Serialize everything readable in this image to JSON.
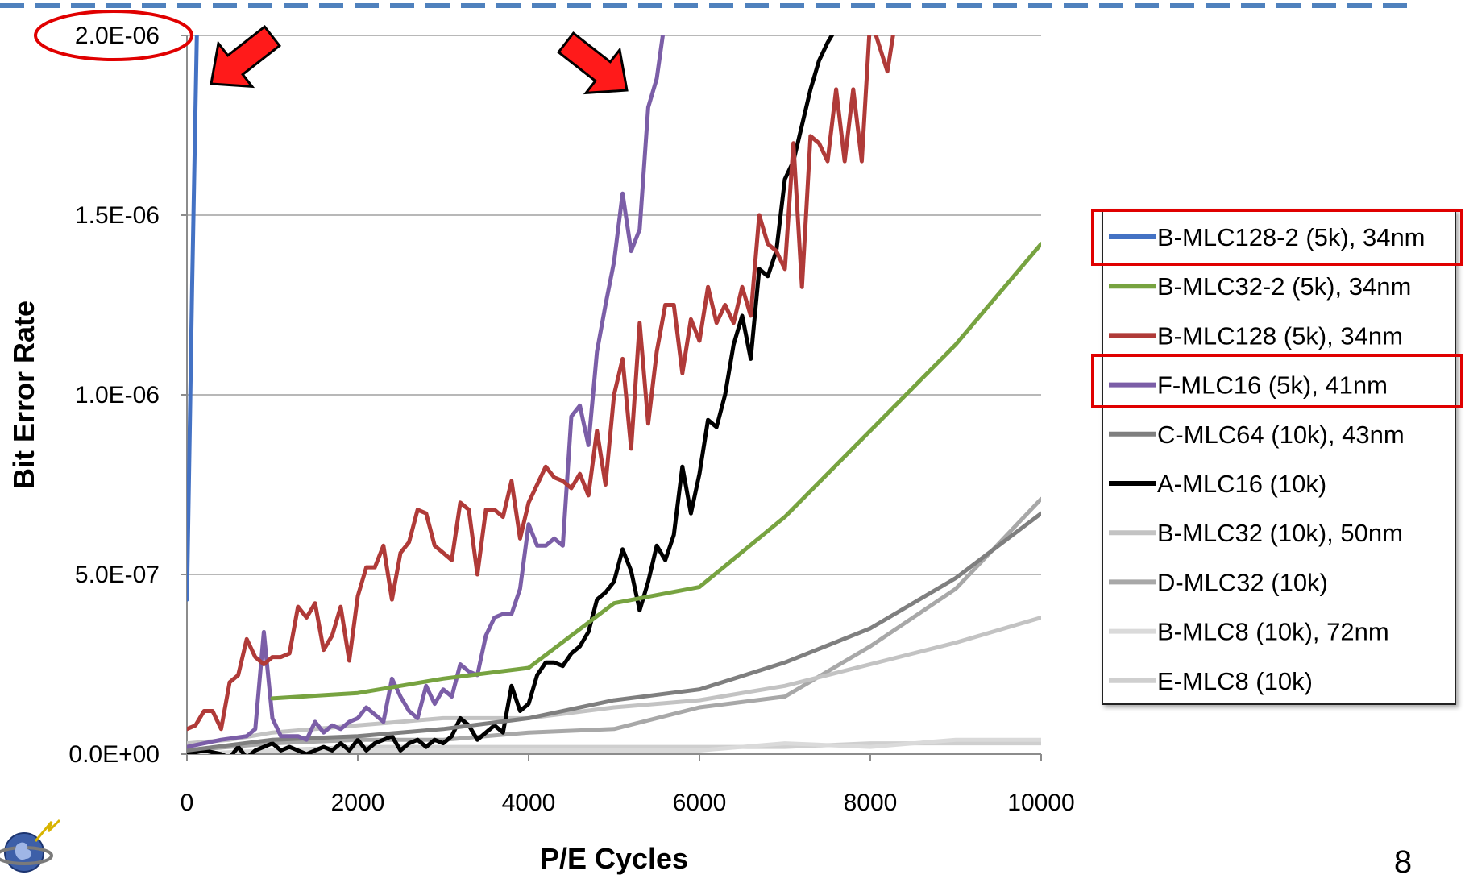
{
  "page_number": "8",
  "colors": {
    "header_dash": "#4f81bd",
    "highlight": "#e00000",
    "grid": "#a0a0a0",
    "axis": "#8c8c8c"
  },
  "chart_data": {
    "type": "line",
    "xlabel": "P/E Cycles",
    "ylabel": "Bit Error Rate",
    "xlim": [
      0,
      10000
    ],
    "ylim": [
      0,
      2e-06
    ],
    "x_ticks": [
      0,
      2000,
      4000,
      6000,
      8000,
      10000
    ],
    "x_tick_labels": [
      "0",
      "2000",
      "4000",
      "6000",
      "8000",
      "10000"
    ],
    "y_ticks": [
      0,
      5e-07,
      1e-06,
      1.5e-06,
      2e-06
    ],
    "y_tick_labels": [
      "0.0E+00",
      "5.0E-07",
      "1.0E-06",
      "1.5E-06",
      "2.0E-06"
    ],
    "grid": "horizontal",
    "legend_position": "right",
    "highlighted_tick": "2.0E-06",
    "highlighted_series": [
      "B-MLC128-2 (5k), 34nm",
      "F-MLC16 (5k), 41nm"
    ],
    "series": [
      {
        "name": "B-MLC128-2 (5k), 34nm",
        "color": "#4472c4",
        "points": [
          [
            0,
            4.3e-07
          ],
          [
            60,
            1.3e-06
          ],
          [
            120,
            2.05e-06
          ]
        ]
      },
      {
        "name": "B-MLC32-2 (5k), 34nm",
        "color": "#77a340",
        "points": [
          [
            1000,
            1.55e-07
          ],
          [
            2000,
            1.7e-07
          ],
          [
            3000,
            2.1e-07
          ],
          [
            4000,
            2.4e-07
          ],
          [
            5000,
            4.2e-07
          ],
          [
            6000,
            4.65e-07
          ],
          [
            7000,
            6.6e-07
          ],
          [
            8000,
            9e-07
          ],
          [
            9000,
            1.14e-06
          ],
          [
            10000,
            1.42e-06
          ]
        ]
      },
      {
        "name": "B-MLC128 (5k), 34nm",
        "color": "#b03a38",
        "points": [
          [
            0,
            7e-08
          ],
          [
            100,
            8e-08
          ],
          [
            200,
            1.2e-07
          ],
          [
            300,
            1.2e-07
          ],
          [
            400,
            7e-08
          ],
          [
            500,
            2e-07
          ],
          [
            600,
            2.2e-07
          ],
          [
            700,
            3.2e-07
          ],
          [
            800,
            2.7e-07
          ],
          [
            900,
            2.5e-07
          ],
          [
            1000,
            2.7e-07
          ],
          [
            1100,
            2.7e-07
          ],
          [
            1200,
            2.8e-07
          ],
          [
            1300,
            4.1e-07
          ],
          [
            1400,
            3.8e-07
          ],
          [
            1500,
            4.2e-07
          ],
          [
            1600,
            2.9e-07
          ],
          [
            1700,
            3.3e-07
          ],
          [
            1800,
            4.1e-07
          ],
          [
            1900,
            2.6e-07
          ],
          [
            2000,
            4.4e-07
          ],
          [
            2100,
            5.2e-07
          ],
          [
            2200,
            5.2e-07
          ],
          [
            2300,
            5.8e-07
          ],
          [
            2400,
            4.3e-07
          ],
          [
            2500,
            5.6e-07
          ],
          [
            2600,
            5.9e-07
          ],
          [
            2700,
            6.8e-07
          ],
          [
            2800,
            6.7e-07
          ],
          [
            2900,
            5.8e-07
          ],
          [
            3000,
            5.6e-07
          ],
          [
            3100,
            5.4e-07
          ],
          [
            3200,
            7e-07
          ],
          [
            3300,
            6.8e-07
          ],
          [
            3400,
            5e-07
          ],
          [
            3500,
            6.8e-07
          ],
          [
            3600,
            6.8e-07
          ],
          [
            3700,
            6.6e-07
          ],
          [
            3800,
            7.6e-07
          ],
          [
            3900,
            6e-07
          ],
          [
            4000,
            7e-07
          ],
          [
            4100,
            7.5e-07
          ],
          [
            4200,
            8e-07
          ],
          [
            4300,
            7.7e-07
          ],
          [
            4400,
            7.6e-07
          ],
          [
            4500,
            7.4e-07
          ],
          [
            4600,
            7.8e-07
          ],
          [
            4700,
            7.2e-07
          ],
          [
            4800,
            9e-07
          ],
          [
            4900,
            7.5e-07
          ],
          [
            5000,
            1e-06
          ],
          [
            5100,
            1.1e-06
          ],
          [
            5200,
            8.5e-07
          ],
          [
            5300,
            1.2e-06
          ],
          [
            5400,
            9.2e-07
          ],
          [
            5500,
            1.12e-06
          ],
          [
            5600,
            1.25e-06
          ],
          [
            5700,
            1.25e-06
          ],
          [
            5800,
            1.06e-06
          ],
          [
            5900,
            1.21e-06
          ],
          [
            6000,
            1.15e-06
          ],
          [
            6100,
            1.3e-06
          ],
          [
            6200,
            1.2e-06
          ],
          [
            6300,
            1.25e-06
          ],
          [
            6400,
            1.2e-06
          ],
          [
            6500,
            1.3e-06
          ],
          [
            6600,
            1.22e-06
          ],
          [
            6700,
            1.5e-06
          ],
          [
            6800,
            1.42e-06
          ],
          [
            6900,
            1.4e-06
          ],
          [
            7000,
            1.35e-06
          ],
          [
            7100,
            1.7e-06
          ],
          [
            7200,
            1.3e-06
          ],
          [
            7300,
            1.72e-06
          ],
          [
            7400,
            1.7e-06
          ],
          [
            7500,
            1.65e-06
          ],
          [
            7600,
            1.85e-06
          ],
          [
            7700,
            1.65e-06
          ],
          [
            7800,
            1.85e-06
          ],
          [
            7900,
            1.65e-06
          ],
          [
            8000,
            2.05e-06
          ],
          [
            8200,
            1.9e-06
          ],
          [
            8300,
            2.05e-06
          ]
        ]
      },
      {
        "name": "F-MLC16 (5k), 41nm",
        "color": "#7b5ea7",
        "points": [
          [
            0,
            2e-08
          ],
          [
            200,
            3e-08
          ],
          [
            400,
            4e-08
          ],
          [
            700,
            5e-08
          ],
          [
            800,
            7e-08
          ],
          [
            900,
            3.4e-07
          ],
          [
            1000,
            1e-07
          ],
          [
            1100,
            5e-08
          ],
          [
            1200,
            5e-08
          ],
          [
            1300,
            5e-08
          ],
          [
            1400,
            4e-08
          ],
          [
            1500,
            9e-08
          ],
          [
            1600,
            6e-08
          ],
          [
            1700,
            8e-08
          ],
          [
            1800,
            7e-08
          ],
          [
            1900,
            9e-08
          ],
          [
            2000,
            1e-07
          ],
          [
            2100,
            1.3e-07
          ],
          [
            2200,
            1.1e-07
          ],
          [
            2300,
            9e-08
          ],
          [
            2400,
            2.1e-07
          ],
          [
            2500,
            1.6e-07
          ],
          [
            2600,
            1.2e-07
          ],
          [
            2700,
            1e-07
          ],
          [
            2800,
            1.9e-07
          ],
          [
            2900,
            1.4e-07
          ],
          [
            3000,
            1.8e-07
          ],
          [
            3100,
            1.6e-07
          ],
          [
            3200,
            2.5e-07
          ],
          [
            3300,
            2.3e-07
          ],
          [
            3400,
            2.2e-07
          ],
          [
            3500,
            3.3e-07
          ],
          [
            3600,
            3.8e-07
          ],
          [
            3700,
            3.9e-07
          ],
          [
            3800,
            3.9e-07
          ],
          [
            3900,
            4.6e-07
          ],
          [
            4000,
            6.4e-07
          ],
          [
            4100,
            5.8e-07
          ],
          [
            4200,
            5.8e-07
          ],
          [
            4300,
            6e-07
          ],
          [
            4400,
            5.8e-07
          ],
          [
            4500,
            9.4e-07
          ],
          [
            4600,
            9.7e-07
          ],
          [
            4700,
            8.6e-07
          ],
          [
            4800,
            1.12e-06
          ],
          [
            4900,
            1.25e-06
          ],
          [
            5000,
            1.37e-06
          ],
          [
            5100,
            1.56e-06
          ],
          [
            5200,
            1.4e-06
          ],
          [
            5300,
            1.46e-06
          ],
          [
            5400,
            1.8e-06
          ],
          [
            5500,
            1.88e-06
          ],
          [
            5600,
            2.05e-06
          ]
        ]
      },
      {
        "name": "C-MLC64 (10k), 43nm",
        "color": "#7f7f7f",
        "points": [
          [
            0,
            1e-08
          ],
          [
            1000,
            4e-08
          ],
          [
            2000,
            5e-08
          ],
          [
            3000,
            7e-08
          ],
          [
            4000,
            1e-07
          ],
          [
            5000,
            1.5e-07
          ],
          [
            6000,
            1.8e-07
          ],
          [
            7000,
            2.55e-07
          ],
          [
            8000,
            3.5e-07
          ],
          [
            9000,
            4.9e-07
          ],
          [
            10000,
            6.7e-07
          ]
        ]
      },
      {
        "name": "A-MLC16 (10k)",
        "color": "#000000",
        "points": [
          [
            0,
            0
          ],
          [
            200,
            1e-08
          ],
          [
            400,
            0
          ],
          [
            500,
            -1e-08
          ],
          [
            600,
            2e-08
          ],
          [
            700,
            -1e-08
          ],
          [
            800,
            1e-08
          ],
          [
            900,
            2e-08
          ],
          [
            1000,
            3e-08
          ],
          [
            1100,
            1e-08
          ],
          [
            1200,
            2e-08
          ],
          [
            1300,
            1e-08
          ],
          [
            1400,
            0
          ],
          [
            1500,
            1e-08
          ],
          [
            1600,
            2e-08
          ],
          [
            1700,
            1e-08
          ],
          [
            1800,
            3e-08
          ],
          [
            1900,
            1e-08
          ],
          [
            2000,
            4e-08
          ],
          [
            2100,
            1e-08
          ],
          [
            2200,
            3e-08
          ],
          [
            2300,
            4e-08
          ],
          [
            2400,
            5e-08
          ],
          [
            2500,
            1e-08
          ],
          [
            2600,
            3e-08
          ],
          [
            2700,
            4e-08
          ],
          [
            2800,
            2e-08
          ],
          [
            2900,
            4e-08
          ],
          [
            3000,
            3e-08
          ],
          [
            3100,
            5e-08
          ],
          [
            3200,
            1e-07
          ],
          [
            3300,
            8e-08
          ],
          [
            3400,
            4e-08
          ],
          [
            3500,
            6e-08
          ],
          [
            3600,
            8e-08
          ],
          [
            3700,
            6e-08
          ],
          [
            3800,
            1.9e-07
          ],
          [
            3900,
            1.2e-07
          ],
          [
            4000,
            1.4e-07
          ],
          [
            4100,
            2.2e-07
          ],
          [
            4200,
            2.55e-07
          ],
          [
            4300,
            2.55e-07
          ],
          [
            4400,
            2.45e-07
          ],
          [
            4500,
            2.8e-07
          ],
          [
            4600,
            3e-07
          ],
          [
            4700,
            3.4e-07
          ],
          [
            4800,
            4.3e-07
          ],
          [
            4900,
            4.5e-07
          ],
          [
            5000,
            4.8e-07
          ],
          [
            5100,
            5.7e-07
          ],
          [
            5200,
            5.1e-07
          ],
          [
            5300,
            4e-07
          ],
          [
            5400,
            4.8e-07
          ],
          [
            5500,
            5.8e-07
          ],
          [
            5600,
            5.4e-07
          ],
          [
            5700,
            6.1e-07
          ],
          [
            5800,
            8e-07
          ],
          [
            5900,
            6.7e-07
          ],
          [
            6000,
            7.8e-07
          ],
          [
            6100,
            9.3e-07
          ],
          [
            6200,
            9.1e-07
          ],
          [
            6300,
            1e-06
          ],
          [
            6400,
            1.14e-06
          ],
          [
            6500,
            1.22e-06
          ],
          [
            6600,
            1.1e-06
          ],
          [
            6700,
            1.35e-06
          ],
          [
            6800,
            1.33e-06
          ],
          [
            6900,
            1.4e-06
          ],
          [
            7000,
            1.6e-06
          ],
          [
            7100,
            1.65e-06
          ],
          [
            7200,
            1.75e-06
          ],
          [
            7300,
            1.85e-06
          ],
          [
            7400,
            1.93e-06
          ],
          [
            7500,
            1.98e-06
          ],
          [
            7600,
            2.02e-06
          ]
        ]
      },
      {
        "name": "B-MLC32 (10k), 50nm",
        "color": "#c3c3c3",
        "points": [
          [
            0,
            3e-08
          ],
          [
            500,
            4e-08
          ],
          [
            1000,
            6e-08
          ],
          [
            2000,
            8e-08
          ],
          [
            3000,
            1e-07
          ],
          [
            4000,
            1e-07
          ],
          [
            5000,
            1.3e-07
          ],
          [
            6000,
            1.5e-07
          ],
          [
            7000,
            1.9e-07
          ],
          [
            8000,
            2.5e-07
          ],
          [
            9000,
            3.1e-07
          ],
          [
            10000,
            3.8e-07
          ]
        ]
      },
      {
        "name": "D-MLC32 (10k)",
        "color": "#a8a8a8",
        "points": [
          [
            0,
            1e-08
          ],
          [
            1000,
            3e-08
          ],
          [
            2000,
            4e-08
          ],
          [
            3000,
            4e-08
          ],
          [
            4000,
            6e-08
          ],
          [
            5000,
            7e-08
          ],
          [
            6000,
            1.3e-07
          ],
          [
            7000,
            1.6e-07
          ],
          [
            8000,
            3e-07
          ],
          [
            9000,
            4.6e-07
          ],
          [
            10000,
            7.1e-07
          ]
        ]
      },
      {
        "name": "B-MLC8 (10k), 72nm",
        "color": "#dadada",
        "points": [
          [
            0,
            0
          ],
          [
            1000,
            1e-08
          ],
          [
            2000,
            1e-08
          ],
          [
            3000,
            1e-08
          ],
          [
            4000,
            1e-08
          ],
          [
            5000,
            1e-08
          ],
          [
            6000,
            1e-08
          ],
          [
            7000,
            3e-08
          ],
          [
            8000,
            2e-08
          ],
          [
            9000,
            4e-08
          ],
          [
            10000,
            4e-08
          ]
        ]
      },
      {
        "name": "E-MLC8 (10k)",
        "color": "#cfcfcf",
        "points": [
          [
            0,
            0
          ],
          [
            1000,
            1e-08
          ],
          [
            2000,
            2e-08
          ],
          [
            3000,
            2e-08
          ],
          [
            4000,
            2e-08
          ],
          [
            5000,
            2e-08
          ],
          [
            6000,
            2e-08
          ],
          [
            7000,
            2e-08
          ],
          [
            8000,
            3e-08
          ],
          [
            9000,
            3e-08
          ],
          [
            10000,
            3e-08
          ]
        ]
      }
    ]
  }
}
